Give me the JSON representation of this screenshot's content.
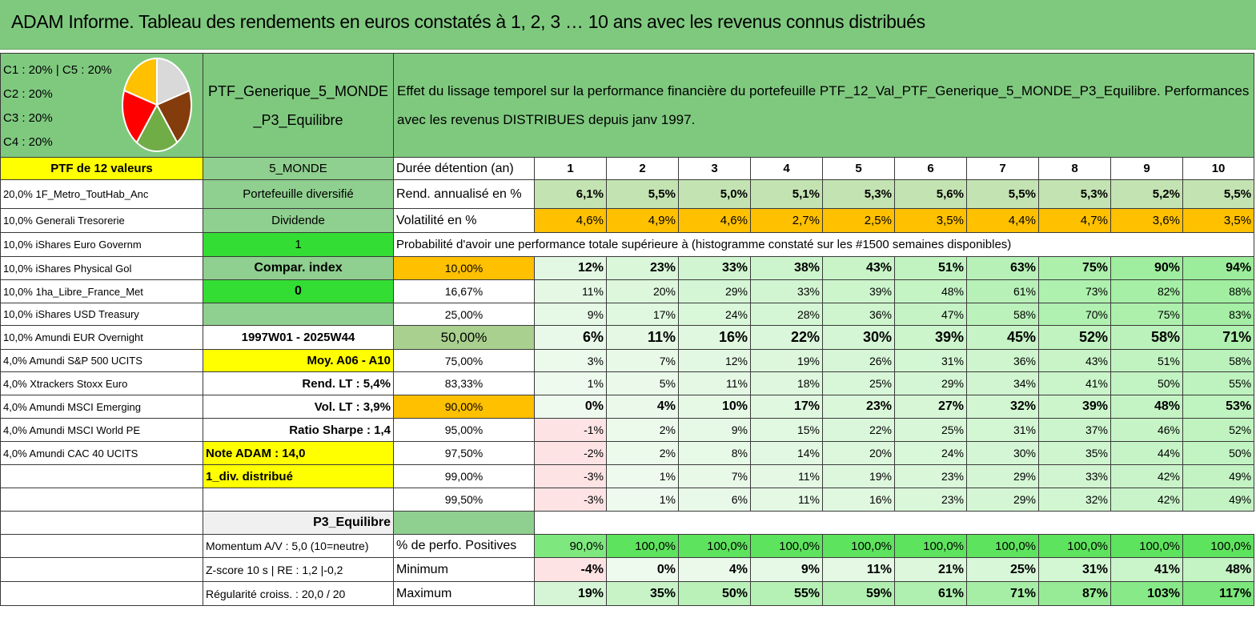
{
  "title": "ADAM Informe. Tableau des rendements en euros constatés à 1, 2, 3 … 10 ans avec les revenus connus distribués",
  "pie": {
    "labels": [
      "C1 : 20% | C5 : 20%",
      "C2 : 20%",
      "C3 : 20%",
      "C4 : 20%"
    ],
    "colors": [
      "#ffc000",
      "#d9d9d9",
      "#843c0c",
      "#70ad47",
      "#ff0000"
    ]
  },
  "portfolio_name": "PTF_Generique_5_MONDE_P3_Equilibre",
  "analysis_text": "Effet du lissage temporel sur la performance financière du portefeuille PTF_12_Val_PTF_Generique_5_MONDE_P3_Equilibre. Performances avec les revenus DISTRIBUES depuis janv 1997.",
  "ptf_count_label": "PTF de 12 valeurs",
  "holdings": [
    "20,0% 1F_Metro_ToutHab_Anc",
    "10,0% Generali Tresorerie",
    "10,0% iShares Euro Governm",
    "10,0% iShares Physical Gol",
    "10,0% 1ha_Libre_France_Met",
    "10,0% iShares USD Treasury",
    "10,0% Amundi EUR Overnight",
    "4,0% Amundi S&P 500 UCITS",
    "4,0% Xtrackers Stoxx Euro",
    "4,0% Amundi MSCI Emerging",
    "4,0% Amundi MSCI World PE",
    "4,0% Amundi CAC 40 UCITS"
  ],
  "info": {
    "zone": "5_MONDE",
    "type": "Portefeuille diversifié",
    "dividend_label": "Dividende",
    "dividend_value": "1",
    "compar_label": "Compar. index",
    "compar_value": "0",
    "period": "1997W01 - 2025W44",
    "moy": "Moy. A06 - A10",
    "rend_lt": "Rend. LT : 5,4%",
    "vol_lt": "Vol. LT : 3,9%",
    "sharpe": "Ratio Sharpe : 1,4",
    "note": "Note ADAM : 14,0",
    "div_distrib": "1_div. distribué",
    "profile": "P3_Equilibre",
    "momentum": "Momentum A/V : 5,0 (10=neutre)",
    "zscore": "Z-score 10 s | RE : 1,2 |-0,2",
    "regularite": "Régularité croiss. : 20,0 / 20"
  },
  "table": {
    "duration_label": "Durée détention (an)",
    "years": [
      "1",
      "2",
      "3",
      "4",
      "5",
      "6",
      "7",
      "8",
      "9",
      "10"
    ],
    "rend_label": "Rend. annualisé en %",
    "rend": [
      "6,1%",
      "5,5%",
      "5,0%",
      "5,1%",
      "5,3%",
      "5,6%",
      "5,5%",
      "5,3%",
      "5,2%",
      "5,5%"
    ],
    "vol_label": "Volatilité en %",
    "vol": [
      "4,6%",
      "4,9%",
      "4,6%",
      "2,7%",
      "2,5%",
      "3,5%",
      "4,4%",
      "4,7%",
      "3,6%",
      "3,5%"
    ],
    "prob_title": "Probabilité d'avoir une performance totale supérieure à (histogramme constaté sur les #1500 semaines disponibles)",
    "prob_rows": [
      {
        "p": "10,00%",
        "v": [
          "12%",
          "23%",
          "33%",
          "38%",
          "43%",
          "51%",
          "63%",
          "75%",
          "90%",
          "94%"
        ]
      },
      {
        "p": "16,67%",
        "v": [
          "11%",
          "20%",
          "29%",
          "33%",
          "39%",
          "48%",
          "61%",
          "73%",
          "82%",
          "88%"
        ]
      },
      {
        "p": "25,00%",
        "v": [
          "9%",
          "17%",
          "24%",
          "28%",
          "36%",
          "47%",
          "58%",
          "70%",
          "75%",
          "83%"
        ]
      },
      {
        "p": "50,00%",
        "v": [
          "6%",
          "11%",
          "16%",
          "22%",
          "30%",
          "39%",
          "45%",
          "52%",
          "58%",
          "71%"
        ]
      },
      {
        "p": "75,00%",
        "v": [
          "3%",
          "7%",
          "12%",
          "19%",
          "26%",
          "31%",
          "36%",
          "43%",
          "51%",
          "58%"
        ]
      },
      {
        "p": "83,33%",
        "v": [
          "1%",
          "5%",
          "11%",
          "18%",
          "25%",
          "29%",
          "34%",
          "41%",
          "50%",
          "55%"
        ]
      },
      {
        "p": "90,00%",
        "v": [
          "0%",
          "4%",
          "10%",
          "17%",
          "23%",
          "27%",
          "32%",
          "39%",
          "48%",
          "53%"
        ]
      },
      {
        "p": "95,00%",
        "v": [
          "-1%",
          "2%",
          "9%",
          "15%",
          "22%",
          "25%",
          "31%",
          "37%",
          "46%",
          "52%"
        ]
      },
      {
        "p": "97,50%",
        "v": [
          "-2%",
          "2%",
          "8%",
          "14%",
          "20%",
          "24%",
          "30%",
          "35%",
          "44%",
          "50%"
        ]
      },
      {
        "p": "99,00%",
        "v": [
          "-3%",
          "1%",
          "7%",
          "11%",
          "19%",
          "23%",
          "29%",
          "33%",
          "42%",
          "49%"
        ]
      },
      {
        "p": "99,50%",
        "v": [
          "-3%",
          "1%",
          "6%",
          "11%",
          "16%",
          "23%",
          "29%",
          "32%",
          "42%",
          "49%"
        ]
      }
    ],
    "pos_label": "% de perfo. Positives",
    "pos": [
      "90,0%",
      "100,0%",
      "100,0%",
      "100,0%",
      "100,0%",
      "100,0%",
      "100,0%",
      "100,0%",
      "100,0%",
      "100,0%"
    ],
    "min_label": "Minimum",
    "min": [
      "-4%",
      "0%",
      "4%",
      "9%",
      "11%",
      "21%",
      "25%",
      "31%",
      "41%",
      "48%"
    ],
    "max_label": "Maximum",
    "max": [
      "19%",
      "35%",
      "50%",
      "55%",
      "59%",
      "61%",
      "71%",
      "87%",
      "103%",
      "117%"
    ]
  }
}
